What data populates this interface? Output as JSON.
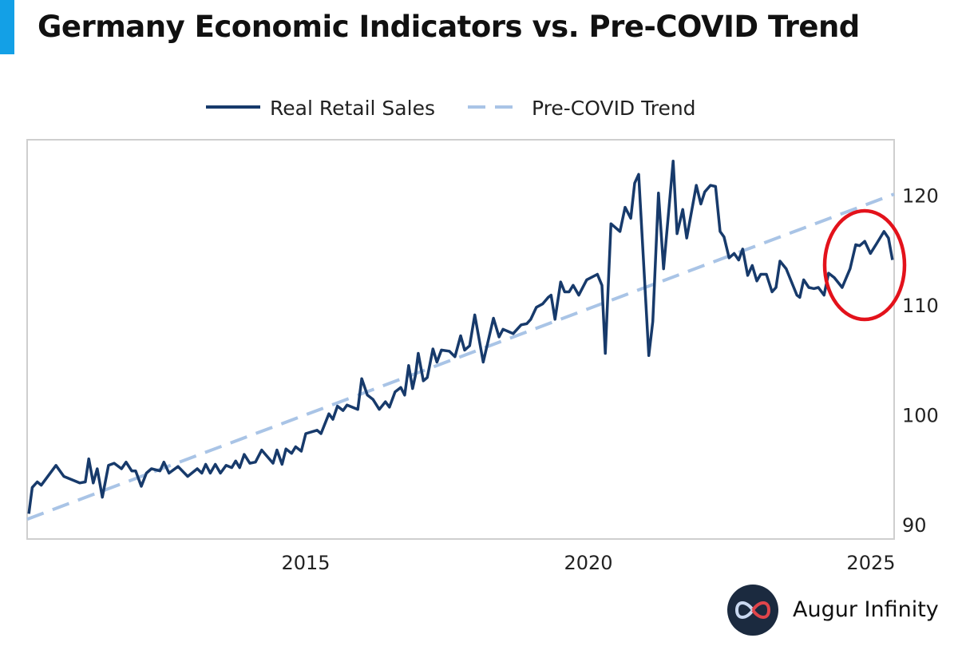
{
  "chart_data": {
    "type": "line",
    "title": "Germany Economic Indicators vs. Pre-COVID Trend",
    "xlabel": "",
    "ylabel": "",
    "xlim": [
      2010.07,
      2025.41
    ],
    "ylim": [
      88.7,
      125.05
    ],
    "x_ticks": [
      2015,
      2020,
      2025
    ],
    "x_tick_labels": [
      "2015",
      "2020",
      "2025"
    ],
    "y_ticks": [
      90,
      100,
      110,
      120
    ],
    "y_tick_labels": [
      "90",
      "100",
      "110",
      "120"
    ],
    "y_axis_side": "right",
    "grid": false,
    "legend_position": "top-center",
    "series": [
      {
        "name": "Real Retail Sales",
        "style": "solid",
        "color": "#173a6b",
        "x": [
          2010.1,
          2010.16,
          2010.25,
          2010.32,
          2010.58,
          2010.72,
          2011.0,
          2011.1,
          2011.16,
          2011.24,
          2011.31,
          2011.4,
          2011.51,
          2011.61,
          2011.74,
          2011.82,
          2011.92,
          2011.99,
          2012.09,
          2012.18,
          2012.27,
          2012.42,
          2012.49,
          2012.58,
          2012.74,
          2012.91,
          2013.08,
          2013.16,
          2013.23,
          2013.31,
          2013.4,
          2013.49,
          2013.59,
          2013.69,
          2013.76,
          2013.83,
          2013.91,
          2014.01,
          2014.11,
          2014.22,
          2014.42,
          2014.49,
          2014.58,
          2014.65,
          2014.75,
          2014.82,
          2014.92,
          2015.0,
          2015.2,
          2015.27,
          2015.41,
          2015.48,
          2015.56,
          2015.66,
          2015.73,
          2015.92,
          2015.99,
          2016.09,
          2016.19,
          2016.3,
          2016.41,
          2016.48,
          2016.58,
          2016.68,
          2016.75,
          2016.82,
          2016.89,
          2016.94,
          2016.99,
          2017.08,
          2017.15,
          2017.25,
          2017.32,
          2017.4,
          2017.54,
          2017.64,
          2017.74,
          2017.81,
          2017.9,
          2017.99,
          2018.14,
          2018.32,
          2018.42,
          2018.49,
          2018.67,
          2018.81,
          2018.91,
          2018.98,
          2019.08,
          2019.19,
          2019.29,
          2019.34,
          2019.41,
          2019.51,
          2019.58,
          2019.66,
          2019.73,
          2019.83,
          2019.97,
          2020.16,
          2020.24,
          2020.3,
          2020.4,
          2020.56,
          2020.65,
          2020.75,
          2020.82,
          2020.89,
          2021.07,
          2021.14,
          2021.24,
          2021.33,
          2021.5,
          2021.57,
          2021.67,
          2021.74,
          2021.91,
          2021.99,
          2022.06,
          2022.16,
          2022.25,
          2022.33,
          2022.4,
          2022.49,
          2022.58,
          2022.66,
          2022.73,
          2022.82,
          2022.9,
          2022.98,
          2023.05,
          2023.15,
          2023.25,
          2023.32,
          2023.39,
          2023.5,
          2023.69,
          2023.74,
          2023.81,
          2023.9,
          2023.99,
          2024.07,
          2024.17,
          2024.25,
          2024.35,
          2024.49,
          2024.63,
          2024.73,
          2024.8,
          2024.89,
          2024.99,
          2025.1,
          2025.23,
          2025.31,
          2025.38
        ],
        "values": [
          91.0,
          93.4,
          93.9,
          93.6,
          95.4,
          94.4,
          93.8,
          93.9,
          96.0,
          93.8,
          95.1,
          92.5,
          95.4,
          95.6,
          95.1,
          95.7,
          94.9,
          94.9,
          93.5,
          94.7,
          95.1,
          94.9,
          95.7,
          94.7,
          95.3,
          94.4,
          95.1,
          94.7,
          95.5,
          94.7,
          95.5,
          94.7,
          95.4,
          95.2,
          95.8,
          95.2,
          96.4,
          95.6,
          95.7,
          96.8,
          95.6,
          96.8,
          95.5,
          96.9,
          96.5,
          97.1,
          96.7,
          98.3,
          98.6,
          98.3,
          100.1,
          99.6,
          100.8,
          100.4,
          100.9,
          100.5,
          103.3,
          101.8,
          101.4,
          100.5,
          101.2,
          100.7,
          102.1,
          102.5,
          101.8,
          104.5,
          102.4,
          103.6,
          105.6,
          103.1,
          103.4,
          106.0,
          104.8,
          105.9,
          105.8,
          105.3,
          107.2,
          105.9,
          106.3,
          109.1,
          104.8,
          108.8,
          107.1,
          107.8,
          107.4,
          108.2,
          108.3,
          108.7,
          109.8,
          110.1,
          110.7,
          110.9,
          108.7,
          112.1,
          111.2,
          111.2,
          111.8,
          110.9,
          112.3,
          112.8,
          111.8,
          105.6,
          117.4,
          116.7,
          118.9,
          117.9,
          121.1,
          121.9,
          105.4,
          108.5,
          120.2,
          113.3,
          123.1,
          116.5,
          118.7,
          116.1,
          120.9,
          119.2,
          120.3,
          120.9,
          120.8,
          116.7,
          116.2,
          114.3,
          114.7,
          114.1,
          115.1,
          112.7,
          113.6,
          112.2,
          112.8,
          112.8,
          111.2,
          111.6,
          114.0,
          113.3,
          110.9,
          110.7,
          112.3,
          111.6,
          111.5,
          111.6,
          110.9,
          112.9,
          112.5,
          111.6,
          113.3,
          115.5,
          115.4,
          115.8,
          114.7,
          115.6,
          116.7,
          116.1,
          114.1
        ]
      },
      {
        "name": "Pre-COVID Trend",
        "style": "dashed",
        "color": "#a9c4e6",
        "x": [
          2010.07,
          2025.41
        ],
        "values": [
          90.5,
          120.1
        ]
      }
    ]
  },
  "header": {
    "title": "Germany Economic Indicators vs. Pre-COVID Trend"
  },
  "brand": {
    "name": "Augur Infinity"
  },
  "colors": {
    "accent": "#13a0e6",
    "highlight": "#e3121b",
    "logo_bg": "#1b2a3f"
  }
}
